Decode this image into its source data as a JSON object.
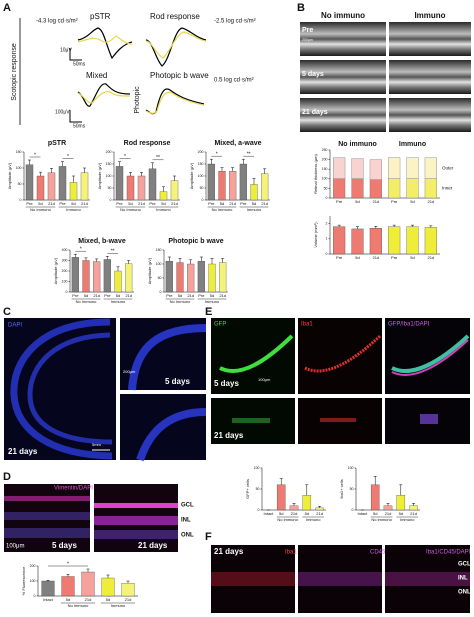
{
  "figure": {
    "panel_labels": [
      "A",
      "B",
      "C",
      "D",
      "E",
      "F"
    ],
    "a": {
      "stim1": "-4.3 log cd·s/m²",
      "pstr": "pSTR",
      "rod": "Rod response",
      "stim2": "-2.5 log cd·s/m²",
      "scotopic": "Scotopic response",
      "mixed": "Mixed",
      "photopic_b": "Photopic b wave",
      "stim3": "0.5 log cd·s/m²",
      "photopic": "Photopic",
      "scale_uv1": "10μV",
      "scale_ms1": "50ms",
      "scale_uv2": "100μV",
      "scale_ms2": "50ms"
    },
    "b": {
      "col1": "No immuno",
      "col2": "Immuno",
      "rows": [
        "Pre",
        "5 days",
        "21 days"
      ],
      "scale": "200μm"
    },
    "c": {
      "stain": "DAPI",
      "scale1": "200μm",
      "t1": "5 days",
      "t2": "21 days",
      "scale2": "5mm"
    },
    "d": {
      "stain": "Vimentin/DAPI",
      "layers": [
        "GCL",
        "INL",
        "ONL"
      ],
      "scale": "100μm",
      "t1": "5 days",
      "t2": "21 days"
    },
    "e": {
      "stains": [
        "GFP",
        "Iba1",
        "GFP/Iba1/DAPI"
      ],
      "t1": "5 days",
      "scale": "100μm",
      "t2": "21 days"
    },
    "f": {
      "t": "21 days",
      "stains": [
        "Iba1",
        "CD45",
        "Iba1/CD45/DAPI"
      ],
      "layers": [
        "GCL",
        "INL",
        "ONL"
      ]
    }
  },
  "chart_data": [
    {
      "type": "bar",
      "title": "pSTR",
      "ylabel": "Amplitude (μV)",
      "categories": [
        "Pre",
        "5d",
        "21d",
        "Pre",
        "5d",
        "21d"
      ],
      "groups": [
        {
          "label": "No Immuno",
          "bars": [
            0,
            2
          ]
        },
        {
          "label": "Immuno",
          "bars": [
            3,
            5
          ]
        }
      ],
      "colors": [
        "#808080",
        "#ee7b72",
        "#f4a29b",
        "#808080",
        "#eeee3a",
        "#f4f27a"
      ],
      "values": [
        110,
        75,
        85,
        105,
        55,
        85
      ],
      "errors": [
        15,
        12,
        14,
        15,
        20,
        15
      ],
      "ylim": [
        0,
        150
      ],
      "yticks": [
        0,
        50,
        100,
        150
      ],
      "sig": [
        {
          "text": "*",
          "bars": [
            0,
            1
          ]
        },
        {
          "text": "*",
          "bars": [
            3,
            4
          ]
        }
      ]
    },
    {
      "type": "bar",
      "title": "Rod response",
      "ylabel": "Amplitude (μV)",
      "categories": [
        "Pre",
        "5d",
        "21d",
        "Pre",
        "5d",
        "21d"
      ],
      "groups": [
        {
          "label": "No Immuno",
          "bars": [
            0,
            2
          ]
        },
        {
          "label": "Immuno",
          "bars": [
            3,
            5
          ]
        }
      ],
      "colors": [
        "#808080",
        "#ee7b72",
        "#f4a29b",
        "#808080",
        "#eeee3a",
        "#f4f27a"
      ],
      "values": [
        140,
        100,
        100,
        130,
        35,
        80
      ],
      "errors": [
        20,
        15,
        15,
        25,
        20,
        20
      ],
      "ylim": [
        0,
        200
      ],
      "yticks": [
        0,
        50,
        100,
        150,
        200
      ],
      "sig": [
        {
          "text": "*",
          "bars": [
            0,
            1
          ]
        },
        {
          "text": "**",
          "bars": [
            3,
            4
          ]
        }
      ]
    },
    {
      "type": "bar",
      "title": "Mixed, a-wave",
      "ylabel": "Amplitude (μV)",
      "categories": [
        "Pre",
        "5d",
        "21d",
        "Pre",
        "5d",
        "21d"
      ],
      "groups": [
        {
          "label": "No Immuno",
          "bars": [
            0,
            2
          ]
        },
        {
          "label": "Immuno",
          "bars": [
            3,
            5
          ]
        }
      ],
      "colors": [
        "#808080",
        "#ee7b72",
        "#f4a29b",
        "#808080",
        "#eeee3a",
        "#f4f27a"
      ],
      "values": [
        150,
        120,
        120,
        150,
        65,
        110
      ],
      "errors": [
        20,
        15,
        15,
        20,
        25,
        20
      ],
      "ylim": [
        0,
        200
      ],
      "yticks": [
        0,
        50,
        100,
        150,
        200
      ],
      "sig": [
        {
          "text": "*",
          "bars": [
            0,
            1
          ]
        },
        {
          "text": "**",
          "bars": [
            3,
            4
          ]
        }
      ]
    },
    {
      "type": "bar",
      "title": "Mixed, b-wave",
      "ylabel": "Amplitude (μV)",
      "categories": [
        "Pre",
        "5d",
        "21d",
        "Pre",
        "5d",
        "21d"
      ],
      "groups": [
        {
          "label": "No Immuno",
          "bars": [
            0,
            2
          ]
        },
        {
          "label": "Immuno",
          "bars": [
            3,
            5
          ]
        }
      ],
      "colors": [
        "#808080",
        "#ee7b72",
        "#f4a29b",
        "#808080",
        "#eeee3a",
        "#f4f27a"
      ],
      "values": [
        330,
        300,
        290,
        310,
        200,
        270
      ],
      "errors": [
        30,
        25,
        25,
        30,
        40,
        30
      ],
      "ylim": [
        0,
        400
      ],
      "yticks": [
        0,
        100,
        200,
        300,
        400
      ],
      "sig": [
        {
          "text": "*",
          "bars": [
            0,
            1
          ]
        },
        {
          "text": "**",
          "bars": [
            3,
            4
          ]
        }
      ]
    },
    {
      "type": "bar",
      "title": "Photopic b wave",
      "ylabel": "Amplitude (μV)",
      "categories": [
        "Pre",
        "5d",
        "21d",
        "Pre",
        "5d",
        "21d"
      ],
      "groups": [
        {
          "label": "No Immuno",
          "bars": [
            0,
            2
          ]
        },
        {
          "label": "Immuno",
          "bars": [
            3,
            5
          ]
        }
      ],
      "colors": [
        "#808080",
        "#ee7b72",
        "#f4a29b",
        "#808080",
        "#eeee3a",
        "#f4f27a"
      ],
      "values": [
        110,
        105,
        100,
        110,
        100,
        105
      ],
      "errors": [
        15,
        15,
        15,
        15,
        20,
        15
      ],
      "ylim": [
        0,
        150
      ],
      "yticks": [
        0,
        50,
        100,
        150
      ],
      "sig": []
    },
    {
      "type": "stacked_bar",
      "ylabel": "Retinal thickness (μm)",
      "categories": [
        "Pre",
        "5d",
        "21d",
        "Pre",
        "5d",
        "21d"
      ],
      "groups": [
        {
          "label": "No immuno",
          "bars": [
            0,
            2
          ]
        },
        {
          "label": "Immuno",
          "bars": [
            3,
            5
          ]
        }
      ],
      "group_label_position": "top",
      "series": [
        {
          "name": "Inner",
          "colors": [
            "#ee7b72",
            "#ee7b72",
            "#ee7b72",
            "#f2ee6a",
            "#f2ee6a",
            "#f2ee6a"
          ],
          "values": [
            100,
            100,
            95,
            100,
            100,
            100
          ]
        },
        {
          "name": "Outer",
          "colors": [
            "#f9d3d0",
            "#f9d3d0",
            "#f9d3d0",
            "#fbf2c6",
            "#fbf2c6",
            "#fbf2c6"
          ],
          "values": [
            110,
            105,
            105,
            110,
            110,
            110
          ]
        }
      ],
      "ylim": [
        0,
        250
      ],
      "yticks": [
        0,
        50,
        100,
        150,
        200,
        250
      ]
    },
    {
      "type": "bar",
      "ylabel": "Volume (mm³)",
      "categories": [
        "Pre",
        "5d",
        "21d",
        "Pre",
        "5d",
        "21d"
      ],
      "colors": [
        "#ee7b72",
        "#ee7b72",
        "#ee7b72",
        "#eeee3a",
        "#eeee3a",
        "#eeee3a"
      ],
      "values": [
        1.8,
        1.65,
        1.7,
        1.8,
        1.8,
        1.75
      ],
      "errors": [
        0.1,
        0.15,
        0.12,
        0.1,
        0.1,
        0.1
      ],
      "ylim": [
        0,
        2.5
      ],
      "yticks": [
        0,
        1,
        2
      ],
      "sig": []
    },
    {
      "type": "bar",
      "ylabel": "% Fluorescence",
      "categories": [
        "Intact",
        "5d",
        "21d",
        "5d",
        "21d"
      ],
      "groups": [
        {
          "label": "No Immuno",
          "bars": [
            1,
            2
          ]
        },
        {
          "label": "Immuno",
          "bars": [
            3,
            4
          ]
        }
      ],
      "colors": [
        "#808080",
        "#ee7b72",
        "#f4a29b",
        "#eeee3a",
        "#f4f27a"
      ],
      "values": [
        100,
        130,
        160,
        120,
        85
      ],
      "errors": [
        5,
        15,
        20,
        20,
        15
      ],
      "ylim": [
        0,
        200
      ],
      "yticks": [
        0,
        100,
        200
      ],
      "sig": [
        {
          "text": "*",
          "bars": [
            0,
            2
          ]
        }
      ]
    },
    {
      "type": "bar",
      "ylabel": "GFP+ cells",
      "categories": [
        "Intact",
        "5d",
        "21d",
        "5d",
        "21d"
      ],
      "groups": [
        {
          "label": "No immuno",
          "bars": [
            1,
            2
          ]
        },
        {
          "label": "Immuno",
          "bars": [
            3,
            4
          ]
        }
      ],
      "colors": [
        "#ffffff",
        "#ee7b72",
        "#f4a29b",
        "#eeee3a",
        "#f4f27a"
      ],
      "values": [
        0,
        60,
        10,
        35,
        5
      ],
      "errors": [
        0,
        15,
        6,
        25,
        4
      ],
      "ylim": [
        0,
        100
      ],
      "yticks": [
        0,
        50,
        100
      ],
      "sig": []
    },
    {
      "type": "bar",
      "ylabel": "Iba1+ cells",
      "categories": [
        "Intact",
        "5d",
        "21d",
        "5d",
        "21d"
      ],
      "groups": [
        {
          "label": "No immuno",
          "bars": [
            1,
            2
          ]
        },
        {
          "label": "Immuno",
          "bars": [
            3,
            4
          ]
        }
      ],
      "colors": [
        "#ffffff",
        "#ee7b72",
        "#f4a29b",
        "#eeee3a",
        "#f4f27a"
      ],
      "values": [
        0,
        60,
        10,
        35,
        10
      ],
      "errors": [
        0,
        20,
        6,
        25,
        6
      ],
      "ylim": [
        0,
        100
      ],
      "yticks": [
        0,
        50,
        100
      ],
      "sig": []
    }
  ]
}
